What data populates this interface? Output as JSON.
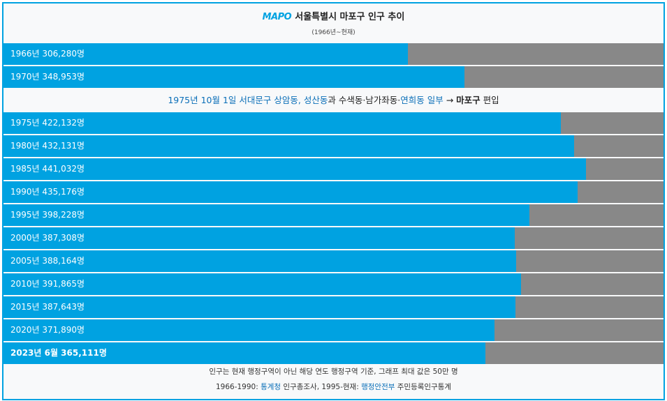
{
  "header": {
    "logo_text": "MAPO",
    "title": "서울특별시 마포구 인구 추이",
    "subtitle": "(1966년~현재)"
  },
  "note": {
    "date": "1975년 10월 1일",
    "part1": "서대문구 상암동, 성산동",
    "part2": "과 수색동·남가좌동·",
    "part3": "연희동 일부",
    "arrow": " → ",
    "part4": "마포구",
    "part5": " 편입"
  },
  "footer": {
    "line1": "인구는 현재 행정구역이 아닌 해당 연도 행정구역 기준, 그래프 최대 값은 50만 명",
    "line2_prefix": "1966-1990: ",
    "line2_link1": "통계청",
    "line2_mid": " 인구총조사, 1995-현재: ",
    "line2_link2": "행정안전부",
    "line2_suffix": " 주민등록인구통계"
  },
  "colors": {
    "bar": "#00a2e1",
    "track": "#888888",
    "border": "#00a2e1",
    "link": "#0b6fb8"
  },
  "chart_data": {
    "type": "bar",
    "orientation": "horizontal",
    "max": 500000,
    "rows": [
      {
        "year_label": "1966년",
        "value_label": "306,280명",
        "value": 306280,
        "bold": false
      },
      {
        "year_label": "1970년",
        "value_label": "348,953명",
        "value": 348953,
        "bold": false
      },
      {
        "year_label": "1975년",
        "value_label": "422,132명",
        "value": 422132,
        "bold": false
      },
      {
        "year_label": "1980년",
        "value_label": "432,131명",
        "value": 432131,
        "bold": false
      },
      {
        "year_label": "1985년",
        "value_label": "441,032명",
        "value": 441032,
        "bold": false
      },
      {
        "year_label": "1990년",
        "value_label": "435,176명",
        "value": 435176,
        "bold": false
      },
      {
        "year_label": "1995년",
        "value_label": "398,228명",
        "value": 398228,
        "bold": false
      },
      {
        "year_label": "2000년",
        "value_label": "387,308명",
        "value": 387308,
        "bold": false
      },
      {
        "year_label": "2005년",
        "value_label": "388,164명",
        "value": 388164,
        "bold": false
      },
      {
        "year_label": "2010년",
        "value_label": "391,865명",
        "value": 391865,
        "bold": false
      },
      {
        "year_label": "2015년",
        "value_label": "387,643명",
        "value": 387643,
        "bold": false
      },
      {
        "year_label": "2020년",
        "value_label": "371,890명",
        "value": 371890,
        "bold": false
      },
      {
        "year_label": "2023년 6월",
        "value_label": "365,111명",
        "value": 365111,
        "bold": true
      }
    ]
  }
}
